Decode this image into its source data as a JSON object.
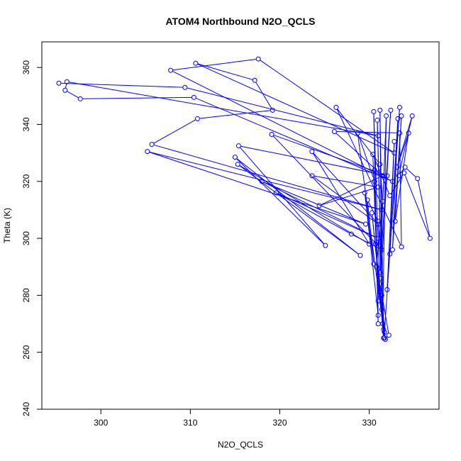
{
  "chart_data": {
    "type": "line",
    "title": "ATOM4 Northbound N2O_QCLS",
    "xlabel": "N2O_QCLS",
    "ylabel": "Theta (K)",
    "xlim": [
      293.4,
      337.8
    ],
    "ylim": [
      240,
      369
    ],
    "xticks": [
      300,
      310,
      320,
      330
    ],
    "yticks": [
      240,
      260,
      280,
      300,
      320,
      340,
      360
    ],
    "grid": false,
    "legend": "none",
    "markers": "open-circle",
    "color": "#0000ff",
    "series": [
      {
        "values": [
          [
            295.3,
            354.5
          ],
          [
            309.4,
            353.0
          ],
          [
            331.0,
            336.0
          ],
          [
            296.2,
            355.0
          ],
          [
            296.0,
            352.0
          ],
          [
            297.7,
            349.0
          ],
          [
            310.4,
            349.5
          ],
          [
            332.6,
            320.0
          ],
          [
            307.8,
            359.0
          ],
          [
            317.6,
            363.0
          ],
          [
            332.8,
            330.0
          ],
          [
            310.6,
            361.5
          ],
          [
            317.2,
            355.5
          ],
          [
            319.2,
            345.0
          ],
          [
            310.8,
            342.0
          ],
          [
            305.7,
            333.0
          ],
          [
            331.4,
            310.0
          ],
          [
            305.2,
            330.5
          ],
          [
            329.6,
            305.0
          ],
          [
            318.0,
            320.0
          ],
          [
            331.0,
            300.0
          ],
          [
            319.6,
            316.0
          ],
          [
            328.0,
            301.5
          ],
          [
            331.4,
            296.0
          ],
          [
            319.1,
            336.5
          ],
          [
            332.0,
            322.0
          ],
          [
            315.4,
            332.5
          ],
          [
            325.1,
            297.5
          ],
          [
            315.0,
            328.5
          ],
          [
            329.0,
            294.0
          ],
          [
            315.3,
            326.0
          ],
          [
            330.0,
            298.0
          ],
          [
            323.6,
            330.5
          ],
          [
            331.0,
            305.0
          ],
          [
            323.6,
            322.0
          ],
          [
            331.0,
            318.0
          ],
          [
            324.4,
            311.5
          ],
          [
            331.5,
            322.0
          ],
          [
            326.1,
            337.5
          ],
          [
            333.4,
            337.0
          ],
          [
            333.6,
            297.0
          ],
          [
            326.3,
            346.0
          ],
          [
            331.2,
            326.0
          ],
          [
            331.5,
            313.0
          ],
          [
            330.8,
            290.0
          ],
          [
            331.6,
            268.0
          ],
          [
            328.7,
            337.0
          ],
          [
            330.6,
            320.0
          ],
          [
            331.0,
            270.0
          ],
          [
            330.5,
            344.5
          ],
          [
            331.2,
            280.0
          ],
          [
            331.6,
            265.0
          ],
          [
            331.2,
            345.0
          ],
          [
            331.4,
            280.0
          ],
          [
            330.9,
            341.5
          ],
          [
            331.5,
            270.0
          ],
          [
            331.9,
            343.0
          ],
          [
            331.2,
            288.0
          ],
          [
            332.4,
            345.0
          ],
          [
            331.3,
            286.0
          ],
          [
            331.7,
            267.0
          ],
          [
            333.4,
            346.0
          ],
          [
            332.0,
            282.0
          ],
          [
            332.8,
            334.0
          ],
          [
            332.3,
            294.5
          ],
          [
            333.2,
            342.0
          ],
          [
            332.6,
            296.0
          ],
          [
            333.6,
            343.0
          ],
          [
            332.9,
            306.0
          ],
          [
            334.4,
            337.0
          ],
          [
            333.1,
            325.0
          ],
          [
            334.8,
            343.0
          ],
          [
            333.3,
            322.0
          ],
          [
            334.0,
            325.0
          ],
          [
            335.4,
            321.0
          ],
          [
            336.8,
            300.0
          ],
          [
            333.9,
            323.0
          ],
          [
            332.3,
            315.0
          ],
          [
            330.4,
            329.5
          ],
          [
            331.0,
            278.0
          ],
          [
            330.6,
            324.0
          ],
          [
            331.0,
            273.0
          ],
          [
            329.5,
            316.0
          ],
          [
            330.5,
            291.0
          ],
          [
            329.8,
            313.5
          ],
          [
            331.0,
            306.0
          ],
          [
            331.7,
            265.0
          ],
          [
            330.3,
            309.0
          ],
          [
            331.4,
            275.0
          ],
          [
            330.7,
            298.0
          ],
          [
            331.8,
            264.5
          ],
          [
            332.2,
            266.0
          ],
          [
            331.2,
            284.0
          ]
        ]
      }
    ]
  }
}
